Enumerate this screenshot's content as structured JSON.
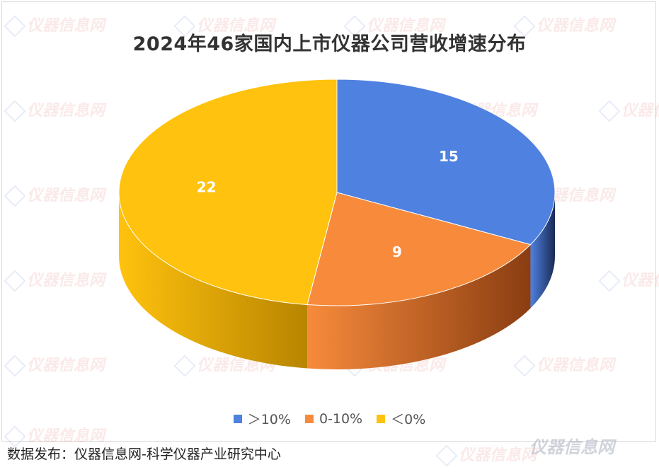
{
  "chart_data": {
    "type": "pie",
    "title": "2024年46家国内上市仪器公司营收增速分布",
    "slices": [
      {
        "label": "＞10%",
        "value": 15,
        "color": "#4f81e0",
        "side": "#1a2a55"
      },
      {
        "label": "0-10%",
        "value": 9,
        "color": "#f78b3b",
        "side": "#8a3d12"
      },
      {
        "label": "＜0%",
        "value": 22,
        "color": "#ffc20e",
        "side": "#b88500"
      }
    ],
    "legend_position": "bottom",
    "style": "3d"
  },
  "source_text": "数据发布：仪器信息网-科学仪器产业研究中心",
  "watermark_text": "仪器信息网"
}
